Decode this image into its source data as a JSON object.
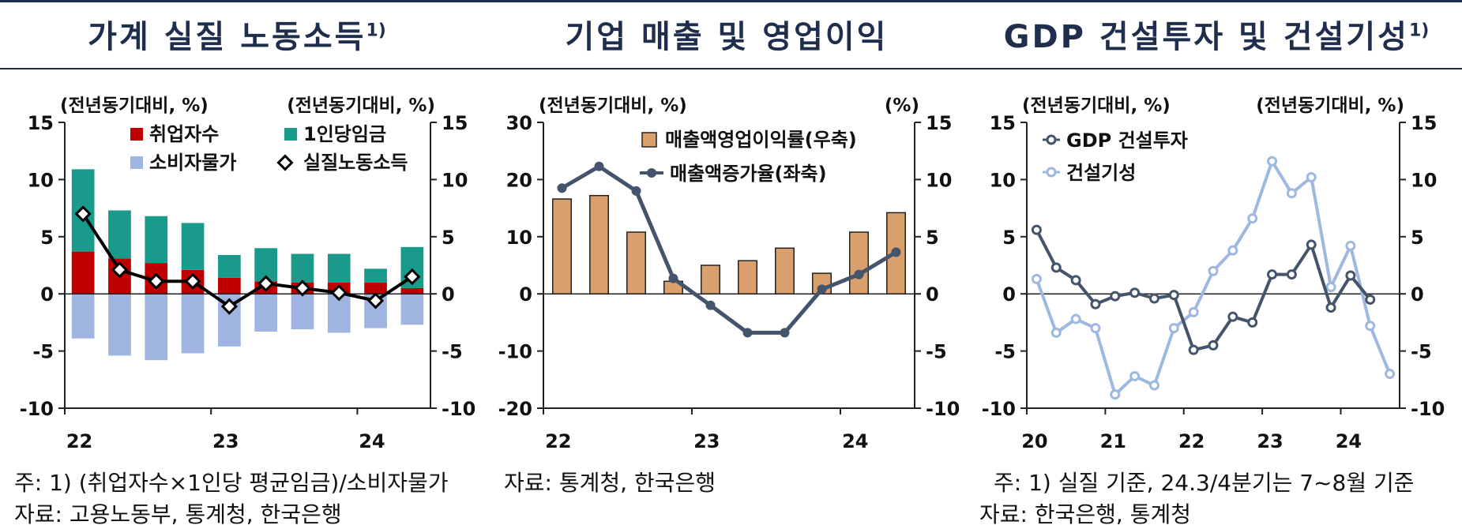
{
  "colors": {
    "title": "#1f2e4d",
    "employed": "#c00000",
    "wage": "#1a9a8a",
    "cpi": "#9fb4e0",
    "real_income": "#000000",
    "margin_bar": "#d9a06e",
    "sales_line": "#44546a",
    "gdp_line": "#44546a",
    "construction_line": "#9fb8e0"
  },
  "panels": [
    {
      "title": "가계 실질 노동소득",
      "title_sup": "1)",
      "left_unit": "(전년동기대비, %)",
      "right_unit": "(전년동기대비, %)",
      "notes": [
        "주: 1) (취업자수×1인당 평균임금)/소비자물가",
        "자료: 고용노동부, 통계청, 한국은행"
      ]
    },
    {
      "title": "기업 매출 및 영업이익",
      "title_sup": "",
      "left_unit": "(전년동기대비, %)",
      "right_unit": "(%)",
      "notes": [
        "자료: 통계청, 한국은행"
      ]
    },
    {
      "title": "GDP 건설투자 및 건설기성",
      "title_sup": "1)",
      "left_unit": "(전년동기대비, %)",
      "right_unit": "(전년동기대비, %)",
      "notes": [
        "주: 1) 실질 기준, 24.3/4분기는 7~8월 기준",
        "자료: 한국은행, 통계청"
      ]
    }
  ],
  "chart_data": [
    {
      "type": "bar",
      "stacked": true,
      "x_labels": [
        "22",
        "23",
        "24"
      ],
      "ylim": [
        -10,
        15
      ],
      "yticks": [
        "15",
        "10",
        "5",
        "0",
        "-5",
        "-10"
      ],
      "y2lim": [
        -10,
        15
      ],
      "y2ticks": [
        "15",
        "10",
        "5",
        "0",
        "-5",
        "-10"
      ],
      "categories": [
        "22.1Q",
        "22.2Q",
        "22.3Q",
        "22.4Q",
        "23.1Q",
        "23.2Q",
        "23.3Q",
        "23.4Q",
        "24.1Q",
        "24.2Q"
      ],
      "series": [
        {
          "name": "취업자수",
          "kind": "bar",
          "values": [
            3.7,
            3.1,
            2.7,
            2.1,
            1.4,
            1.1,
            1.0,
            1.0,
            1.0,
            0.5
          ]
        },
        {
          "name": "1인당임금",
          "kind": "bar",
          "values": [
            7.2,
            4.2,
            4.1,
            4.1,
            2.0,
            2.9,
            2.5,
            2.5,
            1.2,
            3.6
          ]
        },
        {
          "name": "소비자물가",
          "kind": "bar",
          "values": [
            -3.9,
            -5.4,
            -5.8,
            -5.2,
            -4.6,
            -3.3,
            -3.1,
            -3.4,
            -3.0,
            -2.7
          ]
        },
        {
          "name": "실질노동소득",
          "kind": "line",
          "values": [
            7.0,
            2.1,
            1.1,
            1.1,
            -1.1,
            0.9,
            0.5,
            0.1,
            -0.6,
            1.5
          ]
        }
      ]
    },
    {
      "type": "bar",
      "x_labels": [
        "22",
        "23",
        "24"
      ],
      "ylim": [
        -20,
        30
      ],
      "yticks": [
        "30",
        "20",
        "10",
        "0",
        "-10",
        "-20"
      ],
      "y2lim": [
        -10,
        15
      ],
      "y2ticks": [
        "15",
        "10",
        "5",
        "0",
        "-5",
        "-10"
      ],
      "categories": [
        "22.1Q",
        "22.2Q",
        "22.3Q",
        "22.4Q",
        "23.1Q",
        "23.2Q",
        "23.3Q",
        "23.4Q",
        "24.1Q",
        "24.2Q"
      ],
      "series": [
        {
          "name": "매출액영업이익률(우축)",
          "kind": "bar",
          "axis": "right",
          "values": [
            8.3,
            8.6,
            5.4,
            1.1,
            2.5,
            2.9,
            4.0,
            1.8,
            5.4,
            7.1
          ]
        },
        {
          "name": "매출액증가율(좌축)",
          "kind": "line",
          "axis": "left",
          "values": [
            18.5,
            22.3,
            18.0,
            2.7,
            -2.0,
            -6.8,
            -6.8,
            0.8,
            3.4,
            7.3
          ]
        }
      ]
    },
    {
      "type": "line",
      "x_labels": [
        "20",
        "21",
        "22",
        "23",
        "24"
      ],
      "ylim": [
        -10,
        15
      ],
      "yticks": [
        "15",
        "10",
        "5",
        "0",
        "-5",
        "-10"
      ],
      "y2lim": [
        -10,
        15
      ],
      "y2ticks": [
        "15",
        "10",
        "5",
        "0",
        "-5",
        "-10"
      ],
      "series": [
        {
          "name": "GDP 건설투자",
          "values": [
            5.6,
            2.3,
            1.2,
            -0.9,
            -0.2,
            0.1,
            -0.4,
            -0.1,
            -4.9,
            -4.5,
            -2.0,
            -2.5,
            1.7,
            1.7,
            4.3,
            -1.2,
            1.6,
            -0.5
          ]
        },
        {
          "name": "건설기성",
          "values": [
            1.3,
            -3.4,
            -2.2,
            -3.0,
            -8.8,
            -7.2,
            -8.0,
            -3.0,
            -1.6,
            2.0,
            3.8,
            6.6,
            11.6,
            8.8,
            10.2,
            0.6,
            4.2,
            -2.8,
            -7.0
          ]
        }
      ]
    }
  ]
}
